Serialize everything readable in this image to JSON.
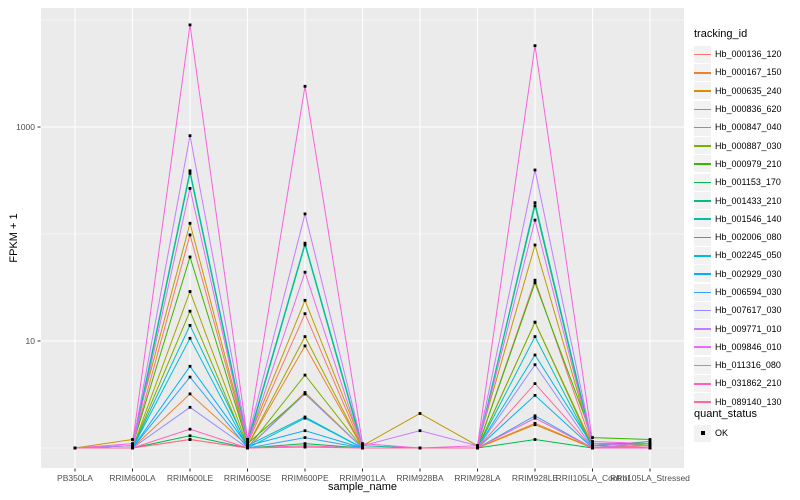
{
  "chart_data": {
    "type": "line",
    "xlabel": "sample_name",
    "ylabel": "FPKM + 1",
    "y_scale": "log10",
    "y_major_ticks": [
      10,
      1000
    ],
    "y_minor_gridlines": [
      1,
      100,
      10000
    ],
    "panel_bg": "#EBEBEB",
    "grid_color": "#FFFFFF",
    "tick_text_color": "#4d4d4d",
    "point_shape": "filled-square",
    "point_color": "#000000",
    "legend_title": "tracking_id",
    "legend2_title": "quant_status",
    "legend2_items": [
      {
        "label": "OK"
      }
    ],
    "samples": [
      "PB350LA",
      "RRIM600LA",
      "RRIM600LE",
      "RRIM600SE",
      "RRIM600PE",
      "RRIM901LA",
      "RRIM928BA",
      "RRIM928LA",
      "RRIM928LE",
      "RRII105LA_Control",
      "RRII105LA_Stressed"
    ],
    "series": [
      {
        "name": "Hb_000136_120",
        "color": "#F8766D",
        "values": [
          1,
          1.05,
          98,
          1.1,
          18,
          1,
          1,
          1,
          37,
          1.05,
          1.1
        ]
      },
      {
        "name": "Hb_000167_150",
        "color": "#EA8331",
        "values": [
          1,
          1,
          3.2,
          1.05,
          9,
          1,
          1,
          1,
          1.7,
          1,
          1.05
        ]
      },
      {
        "name": "Hb_000635_240",
        "color": "#D89000",
        "values": [
          1,
          1,
          1.2,
          1,
          3.3,
          1,
          1,
          1,
          1.65,
          1,
          1
        ]
      },
      {
        "name": "Hb_000836_620",
        "color": "#C09B00",
        "values": [
          1,
          1.2,
          126,
          1.15,
          24,
          1.05,
          2.1,
          1.05,
          79,
          1.1,
          1.05
        ]
      },
      {
        "name": "Hb_000847_040",
        "color": "#A3A500",
        "values": [
          1,
          1,
          29,
          1.05,
          11,
          1,
          1,
          1,
          15,
          1.05,
          1
        ]
      },
      {
        "name": "Hb_000887_030",
        "color": "#7CAE00",
        "values": [
          1,
          1,
          19,
          1,
          4.8,
          1,
          1,
          1,
          15,
          1,
          1.1
        ]
      },
      {
        "name": "Hb_000979_210",
        "color": "#39B600",
        "values": [
          1,
          1.05,
          61,
          1.1,
          3.2,
          1,
          1,
          1,
          35,
          1.25,
          1.2
        ]
      },
      {
        "name": "Hb_001153_170",
        "color": "#00BB4E",
        "values": [
          1,
          1,
          1.3,
          1,
          1.1,
          1,
          1,
          1,
          1.2,
          1,
          1
        ]
      },
      {
        "name": "Hb_001433_210",
        "color": "#00BF7D",
        "values": [
          1,
          1,
          369,
          1.1,
          79,
          1,
          1,
          1,
          183,
          1.05,
          1.15
        ]
      },
      {
        "name": "Hb_001546_140",
        "color": "#00C1A3",
        "values": [
          1,
          1.05,
          390,
          1.15,
          82,
          1.05,
          1,
          1,
          196,
          1.1,
          1.1
        ]
      },
      {
        "name": "Hb_002006_080",
        "color": "#00BFC4",
        "values": [
          1,
          1,
          14,
          1.05,
          1.95,
          1,
          1,
          1,
          11,
          1,
          1
        ]
      },
      {
        "name": "Hb_002245_050",
        "color": "#00BAE0",
        "values": [
          1,
          1,
          10.6,
          1,
          1.9,
          1,
          1,
          1,
          7.4,
          1.05,
          1
        ]
      },
      {
        "name": "Hb_002929_030",
        "color": "#00B0F6",
        "values": [
          1,
          1,
          5.8,
          1.05,
          1.45,
          1,
          1,
          1,
          3.1,
          1,
          1
        ]
      },
      {
        "name": "Hb_006594_030",
        "color": "#35A2FF",
        "values": [
          1,
          1,
          4.6,
          1,
          1.25,
          1,
          1,
          1,
          2,
          1,
          1
        ]
      },
      {
        "name": "Hb_007617_030",
        "color": "#9590FF",
        "values": [
          1,
          1,
          2.4,
          1,
          3.2,
          1,
          1,
          1,
          6,
          1,
          1.05
        ]
      },
      {
        "name": "Hb_009771_010",
        "color": "#C77CFF",
        "values": [
          1,
          1.05,
          830,
          1.2,
          154,
          1.05,
          1.45,
          1.05,
          396,
          1.1,
          1.05
        ]
      },
      {
        "name": "Hb_009846_010",
        "color": "#E76BF3",
        "values": [
          1,
          1,
          267,
          1.1,
          44,
          1,
          1,
          1,
          135,
          1.05,
          1
        ]
      },
      {
        "name": "Hb_011316_080",
        "color": "#FA62DB",
        "values": [
          1,
          1.1,
          9000,
          1.2,
          2400,
          1.1,
          1,
          1.05,
          5750,
          1.15,
          1.1
        ]
      },
      {
        "name": "Hb_031862_210",
        "color": "#FF62BC",
        "values": [
          1,
          1,
          1.5,
          1,
          1.05,
          1,
          1,
          1,
          1.9,
          1,
          1
        ]
      },
      {
        "name": "Hb_089140_130",
        "color": "#FF6A98",
        "values": [
          1,
          1,
          1.2,
          1,
          1.02,
          1,
          1,
          1,
          4,
          1,
          1.05
        ]
      }
    ]
  }
}
